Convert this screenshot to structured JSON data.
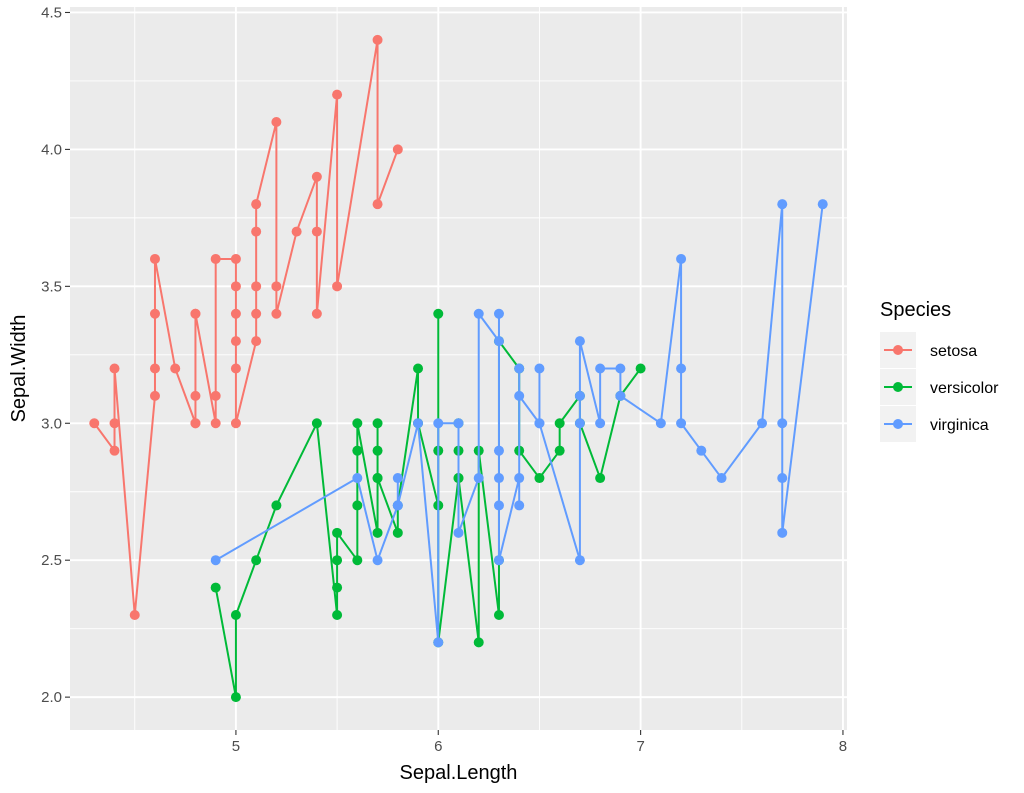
{
  "chart_data": {
    "type": "line",
    "xlabel": "Sepal.Length",
    "ylabel": "Sepal.Width",
    "xlim": [
      4.18,
      8.02
    ],
    "ylim": [
      1.88,
      4.52
    ],
    "x_ticks": [
      5,
      6,
      7,
      8
    ],
    "x_tick_labels": [
      "5",
      "6",
      "7",
      "8"
    ],
    "y_ticks": [
      2.0,
      2.5,
      3.0,
      3.5,
      4.0,
      4.5
    ],
    "y_tick_labels": [
      "2.0",
      "2.5",
      "3.0",
      "3.5",
      "4.0",
      "4.5"
    ],
    "grid": true,
    "background": "#ebebeb",
    "legend": {
      "title": "Species",
      "placement": "right"
    },
    "series": [
      {
        "name": "setosa",
        "color": "#F8766D",
        "points": [
          [
            4.3,
            3.0
          ],
          [
            4.4,
            2.9
          ],
          [
            4.4,
            3.0
          ],
          [
            4.4,
            3.2
          ],
          [
            4.5,
            2.3
          ],
          [
            4.6,
            3.1
          ],
          [
            4.6,
            3.2
          ],
          [
            4.6,
            3.4
          ],
          [
            4.6,
            3.6
          ],
          [
            4.7,
            3.2
          ],
          [
            4.8,
            3.0
          ],
          [
            4.8,
            3.0
          ],
          [
            4.8,
            3.1
          ],
          [
            4.8,
            3.4
          ],
          [
            4.8,
            3.4
          ],
          [
            4.9,
            3.0
          ],
          [
            4.9,
            3.1
          ],
          [
            4.9,
            3.6
          ],
          [
            5.0,
            3.6
          ],
          [
            5.0,
            3.5
          ],
          [
            5.0,
            3.4
          ],
          [
            5.0,
            3.3
          ],
          [
            5.0,
            3.2
          ],
          [
            5.0,
            3.0
          ],
          [
            5.1,
            3.3
          ],
          [
            5.1,
            3.4
          ],
          [
            5.1,
            3.5
          ],
          [
            5.1,
            3.7
          ],
          [
            5.1,
            3.8
          ],
          [
            5.2,
            4.1
          ],
          [
            5.2,
            3.5
          ],
          [
            5.2,
            3.4
          ],
          [
            5.3,
            3.7
          ],
          [
            5.4,
            3.9
          ],
          [
            5.4,
            3.7
          ],
          [
            5.4,
            3.4
          ],
          [
            5.5,
            4.2
          ],
          [
            5.5,
            3.5
          ],
          [
            5.7,
            4.4
          ],
          [
            5.7,
            3.8
          ],
          [
            5.8,
            4.0
          ]
        ]
      },
      {
        "name": "versicolor",
        "color": "#00BA38",
        "points": [
          [
            4.9,
            2.4
          ],
          [
            5.0,
            2.0
          ],
          [
            5.0,
            2.3
          ],
          [
            5.1,
            2.5
          ],
          [
            5.2,
            2.7
          ],
          [
            5.4,
            3.0
          ],
          [
            5.5,
            2.3
          ],
          [
            5.5,
            2.4
          ],
          [
            5.5,
            2.5
          ],
          [
            5.5,
            2.6
          ],
          [
            5.6,
            2.5
          ],
          [
            5.6,
            2.7
          ],
          [
            5.6,
            2.9
          ],
          [
            5.6,
            3.0
          ],
          [
            5.7,
            2.6
          ],
          [
            5.7,
            2.8
          ],
          [
            5.7,
            3.0
          ],
          [
            5.7,
            2.9
          ],
          [
            5.7,
            2.8
          ],
          [
            5.8,
            2.6
          ],
          [
            5.8,
            2.7
          ],
          [
            5.9,
            3.2
          ],
          [
            5.9,
            3.0
          ],
          [
            6.0,
            2.7
          ],
          [
            6.0,
            2.9
          ],
          [
            6.0,
            3.4
          ],
          [
            6.0,
            2.2
          ],
          [
            6.1,
            2.8
          ],
          [
            6.1,
            2.9
          ],
          [
            6.1,
            3.0
          ],
          [
            6.1,
            2.8
          ],
          [
            6.2,
            2.2
          ],
          [
            6.2,
            2.9
          ],
          [
            6.3,
            2.3
          ],
          [
            6.3,
            2.5
          ],
          [
            6.3,
            3.3
          ],
          [
            6.4,
            3.2
          ],
          [
            6.4,
            2.9
          ],
          [
            6.5,
            2.8
          ],
          [
            6.6,
            2.9
          ],
          [
            6.6,
            3.0
          ],
          [
            6.7,
            3.1
          ],
          [
            6.7,
            3.0
          ],
          [
            6.8,
            2.8
          ],
          [
            6.9,
            3.1
          ],
          [
            7.0,
            3.2
          ]
        ]
      },
      {
        "name": "virginica",
        "color": "#619CFF",
        "points": [
          [
            4.9,
            2.5
          ],
          [
            5.6,
            2.8
          ],
          [
            5.7,
            2.5
          ],
          [
            5.8,
            2.7
          ],
          [
            5.8,
            2.8
          ],
          [
            5.8,
            2.7
          ],
          [
            5.9,
            3.0
          ],
          [
            6.0,
            2.2
          ],
          [
            6.0,
            3.0
          ],
          [
            6.1,
            3.0
          ],
          [
            6.1,
            2.6
          ],
          [
            6.2,
            2.8
          ],
          [
            6.2,
            3.4
          ],
          [
            6.3,
            3.3
          ],
          [
            6.3,
            3.4
          ],
          [
            6.3,
            2.9
          ],
          [
            6.3,
            2.8
          ],
          [
            6.3,
            2.7
          ],
          [
            6.3,
            2.5
          ],
          [
            6.4,
            2.8
          ],
          [
            6.4,
            2.7
          ],
          [
            6.4,
            3.2
          ],
          [
            6.4,
            3.1
          ],
          [
            6.5,
            3.0
          ],
          [
            6.5,
            3.2
          ],
          [
            6.5,
            3.0
          ],
          [
            6.7,
            2.5
          ],
          [
            6.7,
            3.0
          ],
          [
            6.7,
            3.1
          ],
          [
            6.7,
            3.3
          ],
          [
            6.8,
            3.0
          ],
          [
            6.8,
            3.2
          ],
          [
            6.9,
            3.2
          ],
          [
            6.9,
            3.1
          ],
          [
            7.1,
            3.0
          ],
          [
            7.2,
            3.6
          ],
          [
            7.2,
            3.2
          ],
          [
            7.2,
            3.0
          ],
          [
            7.3,
            2.9
          ],
          [
            7.4,
            2.8
          ],
          [
            7.6,
            3.0
          ],
          [
            7.7,
            3.8
          ],
          [
            7.7,
            3.0
          ],
          [
            7.7,
            2.8
          ],
          [
            7.7,
            2.6
          ],
          [
            7.9,
            3.8
          ]
        ]
      }
    ]
  }
}
